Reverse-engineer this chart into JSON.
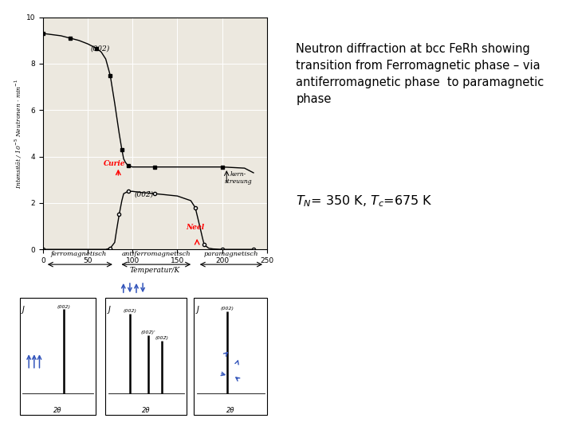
{
  "title_line1": "Neutron diffraction at bcc FeRh showing",
  "title_line2": "transition from Ferromagnetic phase – via",
  "title_line3": "antiferromagnetic phase  to paramagnetic",
  "title_line4": "phase",
  "tn_tc_text": "T$_{N}$= 350 K, T$_{c}$=675 K",
  "ylabel": "Intensität / 10$^{-5}$ Neutronen · min$^{-1}$",
  "xlabel": "Temperatur/K",
  "phase_labels": [
    "ferromagnetisch",
    "antiferromagnetisch",
    "paramagnetisch"
  ],
  "bg_color": "#ffffff",
  "plot_bg": "#ece8df",
  "curve1_label": "(002)",
  "curve2_label": "(002̅)",
  "annot_curie": "Curie",
  "annot_neel": "Neel",
  "annot_kern": "Kern-\nstreuung",
  "T1_pts": [
    0,
    10,
    20,
    30,
    40,
    50,
    60,
    65,
    70,
    75,
    80,
    85,
    88,
    90,
    92,
    95,
    100,
    110,
    125,
    150,
    175,
    200,
    225,
    235
  ],
  "I1_pts": [
    9.3,
    9.25,
    9.2,
    9.1,
    9.0,
    8.85,
    8.65,
    8.5,
    8.2,
    7.5,
    6.3,
    5.0,
    4.3,
    3.9,
    3.75,
    3.6,
    3.55,
    3.55,
    3.55,
    3.55,
    3.55,
    3.55,
    3.5,
    3.3
  ],
  "T2_pts": [
    0,
    50,
    70,
    75,
    80,
    82,
    85,
    88,
    90,
    95,
    100,
    110,
    125,
    150,
    165,
    170,
    175,
    178,
    180,
    185,
    190,
    200,
    210,
    220,
    235
  ],
  "I2_pts": [
    0,
    0,
    0,
    0.05,
    0.3,
    0.8,
    1.5,
    2.1,
    2.4,
    2.5,
    2.5,
    2.45,
    2.4,
    2.3,
    2.1,
    1.8,
    1.0,
    0.5,
    0.2,
    0.05,
    0.02,
    0,
    0,
    0,
    0
  ],
  "text_color": "#000000",
  "arrow_blue": "#3355bb"
}
